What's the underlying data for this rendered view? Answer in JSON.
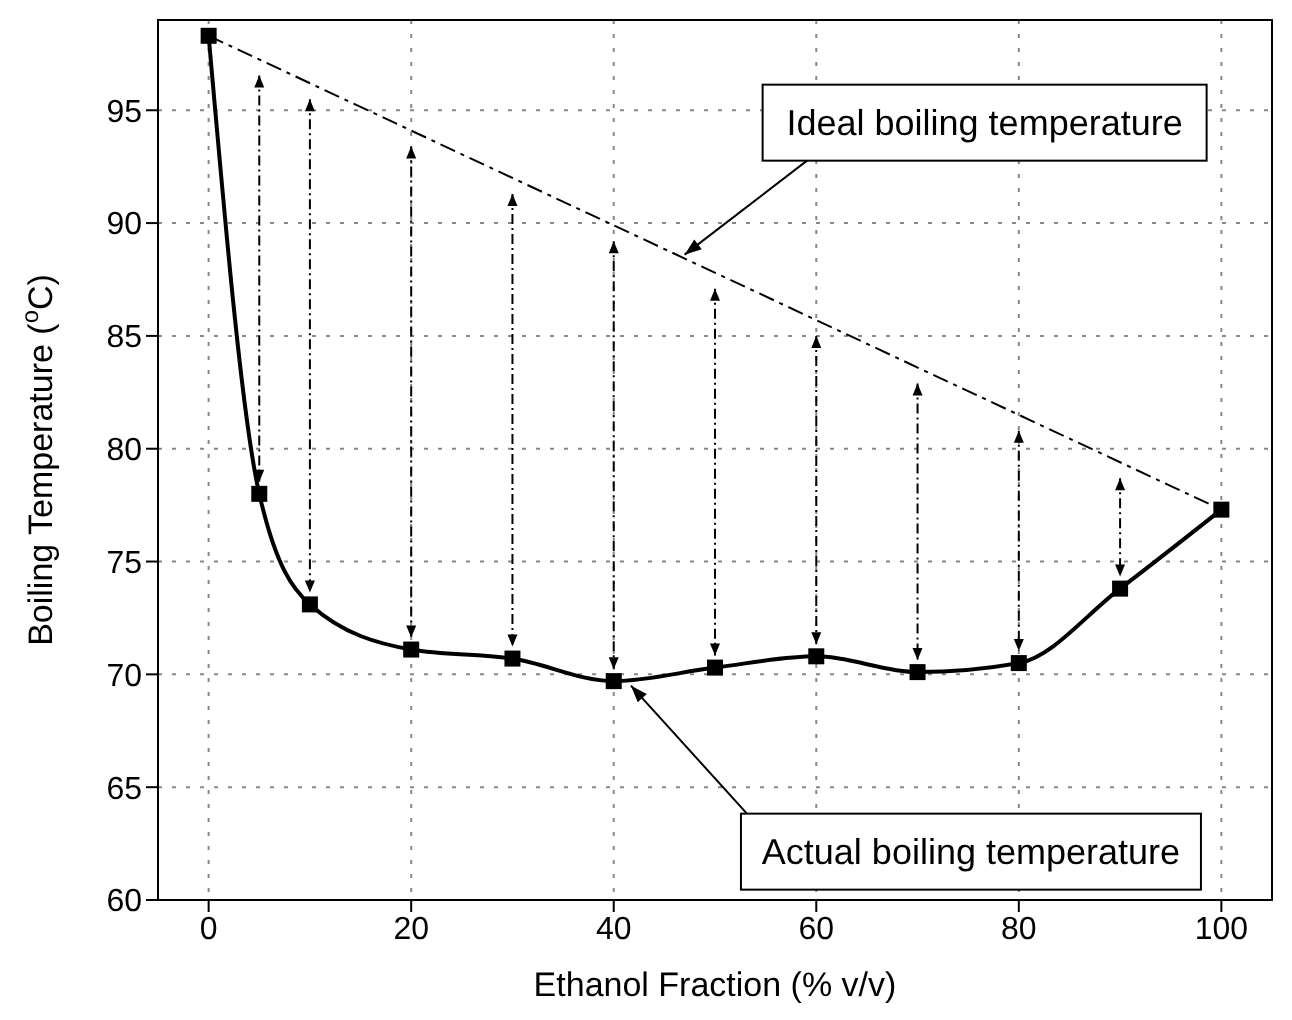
{
  "chart_data": {
    "type": "line",
    "xlabel": "Ethanol Fraction (% v/v)",
    "ylabel": "Boiling Temperature ($^{o}$C)",
    "xlim": [
      -5,
      105
    ],
    "xticks": [
      0,
      20,
      40,
      60,
      80,
      100
    ],
    "ylim": [
      60,
      99
    ],
    "yticks": [
      60,
      65,
      70,
      75,
      80,
      85,
      90,
      95
    ],
    "grid": true,
    "series": [
      {
        "color": "#000000",
        "marker": "square",
        "line_style": "solid",
        "x": [
          0,
          5,
          10,
          20,
          30,
          40,
          50,
          60,
          70,
          80,
          90,
          100
        ],
        "values": [
          98.3,
          78.0,
          73.1,
          71.1,
          70.7,
          69.7,
          70.3,
          70.8,
          70.1,
          70.5,
          73.8,
          77.3
        ]
      },
      {
        "color": "#000000",
        "marker": "none",
        "line_style": "dashed",
        "x": [
          0,
          100
        ],
        "values": [
          98.3,
          77.3
        ]
      }
    ],
    "annotations": [
      {
        "text": "Ideal boiling temperature",
        "x": 47,
        "y": 88.6
      },
      {
        "text": "Actual boiling temperature",
        "x": 41.7,
        "y": 69.5
      }
    ]
  }
}
